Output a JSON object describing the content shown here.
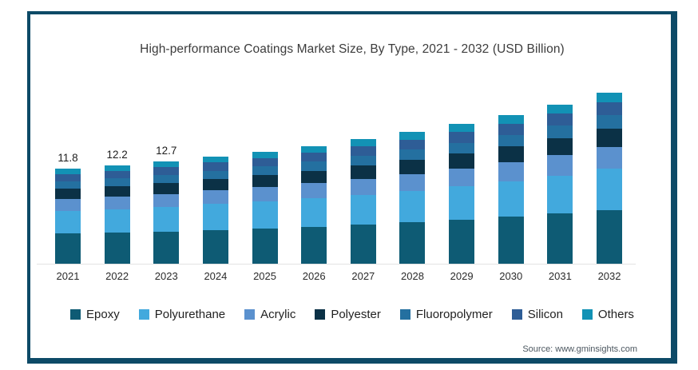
{
  "title": "High-performance Coatings Market Size, By Type, 2021 - 2032 (USD Billion)",
  "source": "Source: www.gminsights.com",
  "frame_color": "#0D4A67",
  "chart_data": {
    "type": "bar",
    "stacked": true,
    "title": "High-performance Coatings Market Size, By Type, 2021 - 2032 (USD Billion)",
    "unit": "USD Billion",
    "categories": [
      "2021",
      "2022",
      "2023",
      "2024",
      "2025",
      "2026",
      "2027",
      "2028",
      "2029",
      "2030",
      "2031",
      "2032"
    ],
    "totals": [
      11.8,
      12.2,
      12.7,
      13.3,
      13.9,
      14.6,
      15.4,
      16.3,
      17.3,
      18.4,
      19.7,
      21.2
    ],
    "bar_labels": [
      "11.8",
      "12.2",
      "12.7"
    ],
    "series": [
      {
        "name": "Epoxy",
        "color": "#0E5B74",
        "values": [
          3.72,
          3.84,
          4.0,
          4.19,
          4.38,
          4.6,
          4.85,
          5.13,
          5.45,
          5.8,
          6.21,
          6.68
        ]
      },
      {
        "name": "Polyurethane",
        "color": "#42A9DD",
        "values": [
          2.83,
          2.93,
          3.05,
          3.19,
          3.34,
          3.5,
          3.7,
          3.91,
          4.15,
          4.42,
          4.73,
          5.09
        ]
      },
      {
        "name": "Acrylic",
        "color": "#5B91CE",
        "values": [
          1.5,
          1.55,
          1.61,
          1.69,
          1.77,
          1.85,
          1.96,
          2.07,
          2.2,
          2.34,
          2.5,
          2.69
        ]
      },
      {
        "name": "Polyester",
        "color": "#0B3146",
        "values": [
          1.26,
          1.31,
          1.36,
          1.42,
          1.49,
          1.56,
          1.65,
          1.74,
          1.85,
          1.97,
          2.11,
          2.27
        ]
      },
      {
        "name": "Fluoropolymer",
        "color": "#2470A0",
        "values": [
          0.92,
          0.95,
          0.99,
          1.04,
          1.08,
          1.14,
          1.2,
          1.27,
          1.35,
          1.44,
          1.54,
          1.65
        ]
      },
      {
        "name": "Silicon",
        "color": "#2E5D96",
        "values": [
          0.9,
          0.93,
          0.97,
          1.01,
          1.06,
          1.11,
          1.17,
          1.24,
          1.31,
          1.4,
          1.5,
          1.61
        ]
      },
      {
        "name": "Others",
        "color": "#1292B5",
        "values": [
          0.67,
          0.7,
          0.72,
          0.76,
          0.79,
          0.83,
          0.88,
          0.93,
          0.99,
          1.05,
          1.12,
          1.21
        ]
      }
    ],
    "legend": [
      "Epoxy",
      "Polyurethane",
      "Acrylic",
      "Polyester",
      "Fluoropolymer",
      "Silicon",
      "Others"
    ],
    "legend_position": "bottom",
    "axes": {
      "y_axis_visible": false,
      "gridlines": false,
      "x_ticks": [
        "2021",
        "2022",
        "2023",
        "2024",
        "2025",
        "2026",
        "2027",
        "2028",
        "2029",
        "2030",
        "2031",
        "2032"
      ]
    }
  }
}
